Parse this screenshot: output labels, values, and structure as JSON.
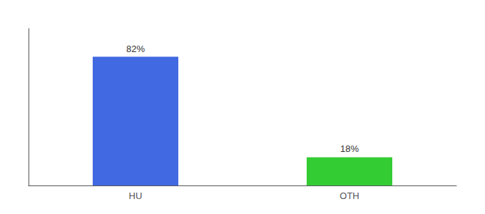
{
  "chart_data": {
    "type": "bar",
    "categories": [
      "HU",
      "OTH"
    ],
    "values": [
      82,
      18
    ],
    "value_labels": [
      "82%",
      "18%"
    ],
    "colors": [
      "#4169e1",
      "#33cc33"
    ],
    "ylim": [
      0,
      100
    ],
    "grid": false,
    "data_labels": true,
    "tick_labels": "x"
  }
}
